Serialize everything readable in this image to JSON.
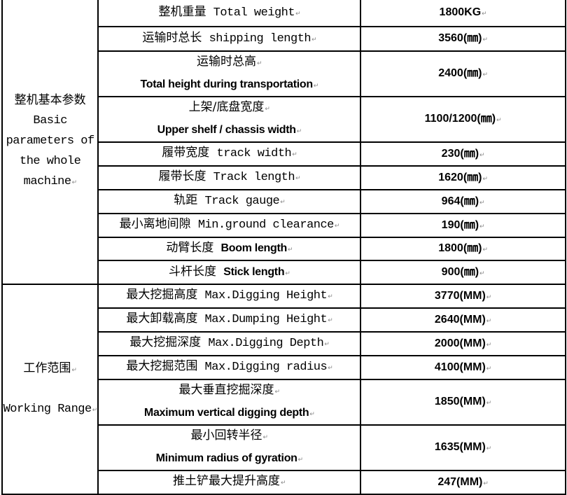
{
  "groups": [
    {
      "label_zh": "整机基本参数",
      "label_en": "Basic parameters of the whole machine",
      "rows": [
        {
          "zh": "整机重量",
          "en": "Total weight",
          "value": "1800KG",
          "layout": "inline"
        },
        {
          "zh": "运输时总长",
          "en": "shipping length",
          "value": "3560(㎜)",
          "layout": "inline"
        },
        {
          "zh": "运输时总高",
          "en": "Total height during transportation",
          "value": "2400(㎜)",
          "layout": "stacked"
        },
        {
          "zh": "上架/底盘宽度",
          "en": "Upper shelf / chassis width",
          "value": "1100/1200(㎜)",
          "layout": "stacked"
        },
        {
          "zh": "履带宽度",
          "en": "track width",
          "value": "230(㎜)",
          "layout": "inline"
        },
        {
          "zh": "履带长度",
          "en": "Track length",
          "value": "1620(㎜)",
          "layout": "inline"
        },
        {
          "zh": "轨距",
          "en": "Track gauge",
          "value": "964(㎜)",
          "layout": "inline"
        },
        {
          "zh": "最小离地间隙",
          "en": "Min.ground clearance",
          "value": "190(㎜)",
          "layout": "inline"
        },
        {
          "zh": "动臂长度",
          "en": "Boom length",
          "value": "1800(㎜)",
          "layout": "inline-bold"
        },
        {
          "zh": "斗杆长度",
          "en": "Stick length",
          "value": "900(㎜)",
          "layout": "inline-bold"
        }
      ]
    },
    {
      "label_zh": "工作范围",
      "label_en": "Working Range",
      "rows": [
        {
          "zh": "最大挖掘高度",
          "en": "Max.Digging Height",
          "value": "3770(MM)",
          "layout": "inline"
        },
        {
          "zh": "最大卸载高度",
          "en": "Max.Dumping Height",
          "value": "2640(MM)",
          "layout": "inline"
        },
        {
          "zh": "最大挖掘深度",
          "en": "Max.Digging Depth",
          "value": "2000(MM)",
          "layout": "inline"
        },
        {
          "zh": "最大挖掘范围",
          "en": "Max.Digging radius",
          "value": "4100(MM)",
          "layout": "inline"
        },
        {
          "zh": "最大垂直挖掘深度",
          "en": "Maximum vertical digging depth",
          "value": "1850(MM)",
          "layout": "stacked"
        },
        {
          "zh": "最小回转半径",
          "en": "Minimum radius of gyration",
          "value": "1635(MM)",
          "layout": "stacked"
        },
        {
          "zh": "推土铲最大提升高度",
          "en": "",
          "value": "247(MM)",
          "layout": "zh-only"
        }
      ]
    }
  ]
}
